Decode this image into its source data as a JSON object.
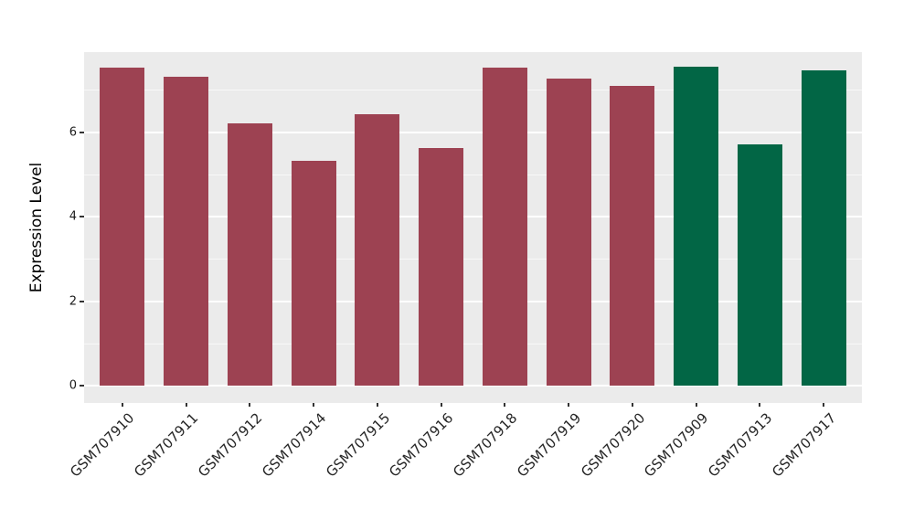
{
  "figure": {
    "background_color": "#ffffff",
    "panel_background_color": "#ebebeb",
    "grid_color": "#ffffff",
    "axis_text_color": "#1a1a1a",
    "tick_mark_color": "#333333"
  },
  "chart_data": {
    "type": "bar",
    "title": "",
    "xlabel": "",
    "ylabel": "Expression Level",
    "categories": [
      "GSM707910",
      "GSM707911",
      "GSM707912",
      "GSM707914",
      "GSM707915",
      "GSM707916",
      "GSM707918",
      "GSM707919",
      "GSM707920",
      "GSM707909",
      "GSM707913",
      "GSM707917"
    ],
    "values": [
      7.53,
      7.3,
      6.21,
      5.31,
      6.43,
      5.62,
      7.53,
      7.26,
      7.08,
      7.54,
      5.7,
      7.45
    ],
    "bar_colors": [
      "#9d4252",
      "#9d4252",
      "#9d4252",
      "#9d4252",
      "#9d4252",
      "#9d4252",
      "#9d4252",
      "#9d4252",
      "#9d4252",
      "#026645",
      "#026645",
      "#026645"
    ],
    "color_group_1": "#9d4252",
    "color_group_2": "#026645",
    "yticks": [
      0,
      2,
      4,
      6
    ],
    "minor_gridlines": [
      1,
      3,
      5,
      7
    ],
    "ylim": [
      -0.38,
      7.92
    ],
    "grid": true,
    "legend_position": "none",
    "panel_bg": "#ebebeb"
  }
}
